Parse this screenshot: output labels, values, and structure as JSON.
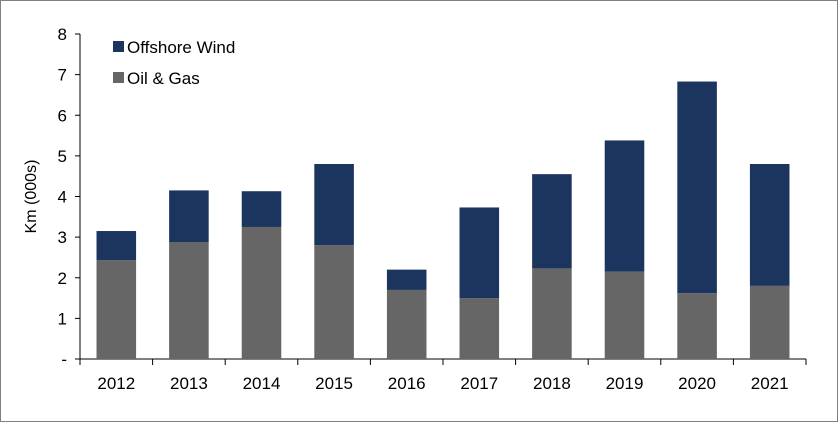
{
  "chart_data": {
    "type": "bar",
    "stacked": true,
    "title": "",
    "xlabel": "",
    "ylabel": "Km (000s)",
    "ylim": [
      0,
      8
    ],
    "yticks": [
      {
        "value": 0,
        "label": "-"
      },
      {
        "value": 1,
        "label": "1"
      },
      {
        "value": 2,
        "label": "2"
      },
      {
        "value": 3,
        "label": "3"
      },
      {
        "value": 4,
        "label": "4"
      },
      {
        "value": 5,
        "label": "5"
      },
      {
        "value": 6,
        "label": "6"
      },
      {
        "value": 7,
        "label": "7"
      },
      {
        "value": 8,
        "label": "8"
      }
    ],
    "grid": false,
    "legend_position": "top-left",
    "categories": [
      "2012",
      "2013",
      "2014",
      "2015",
      "2016",
      "2017",
      "2018",
      "2019",
      "2020",
      "2021"
    ],
    "series": [
      {
        "name": "Oil & Gas",
        "color": "#666666",
        "values": [
          2.43,
          2.88,
          3.25,
          2.8,
          1.7,
          1.5,
          2.23,
          2.15,
          1.62,
          1.8
        ]
      },
      {
        "name": "Offshore Wind",
        "color": "#1c355e",
        "values": [
          0.72,
          1.27,
          0.88,
          2.0,
          0.5,
          2.23,
          2.32,
          3.23,
          5.21,
          3.0
        ]
      }
    ],
    "legend_order": [
      "Offshore Wind",
      "Oil & Gas"
    ]
  }
}
